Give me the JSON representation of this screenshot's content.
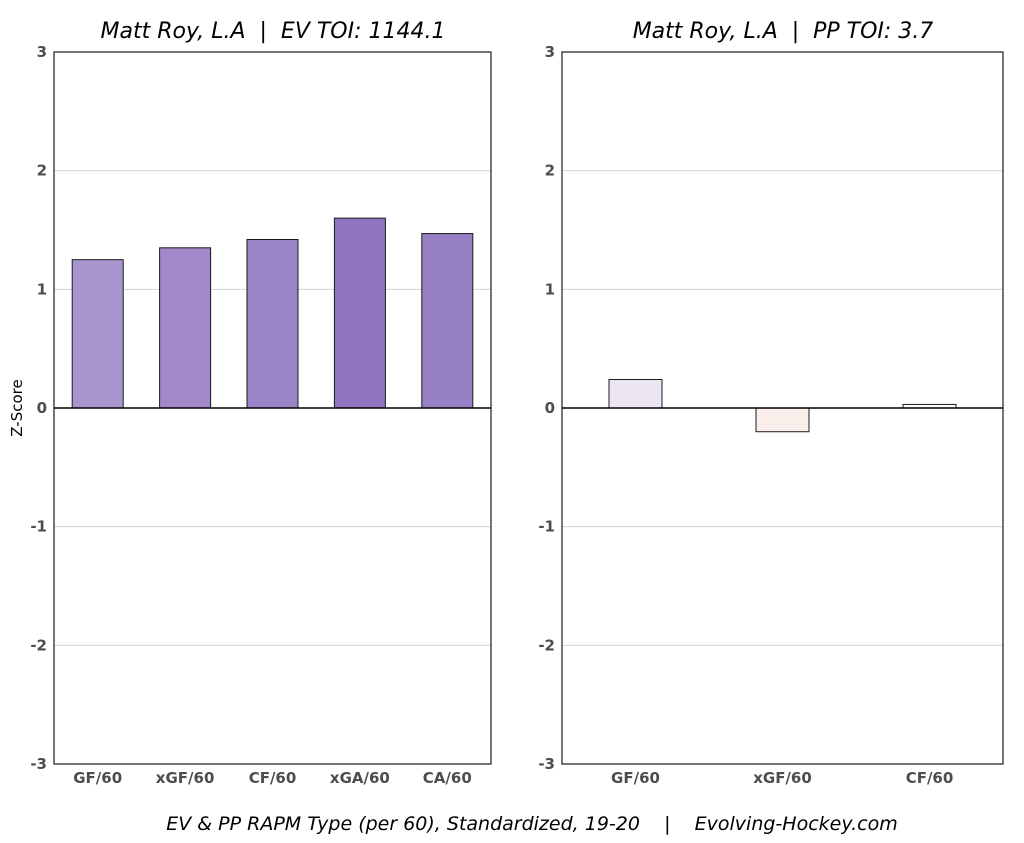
{
  "chart_data": [
    {
      "type": "bar",
      "title": "Matt Roy, L.A  |  EV TOI: 1144.1",
      "categories": [
        "GF/60",
        "xGF/60",
        "CF/60",
        "xGA/60",
        "CA/60"
      ],
      "values": [
        1.25,
        1.35,
        1.42,
        1.6,
        1.47
      ],
      "colors": [
        "#a995cf",
        "#a088c9",
        "#9a83c6",
        "#8f74be",
        "#9880c5"
      ],
      "ylabel": "Z-Score",
      "xlabel": "",
      "ylim": [
        -3,
        3
      ],
      "yticks": [
        "3",
        "2",
        "1",
        "0",
        "-1",
        "-2",
        "-3"
      ],
      "grid": true
    },
    {
      "type": "bar",
      "title": "Matt Roy, L.A  |  PP TOI: 3.7",
      "categories": [
        "GF/60",
        "xGF/60",
        "CF/60"
      ],
      "values": [
        0.24,
        -0.2,
        0.03
      ],
      "colors": [
        "#ece6f4",
        "#fbefeb",
        "#fdfbfc"
      ],
      "ylabel": "",
      "xlabel": "",
      "ylim": [
        -3,
        3
      ],
      "yticks": [
        "3",
        "2",
        "1",
        "0",
        "-1",
        "-2",
        "-3"
      ],
      "grid": true
    }
  ],
  "caption": "EV & PP RAPM Type (per 60), Standardized, 19-20    |    Evolving-Hockey.com"
}
